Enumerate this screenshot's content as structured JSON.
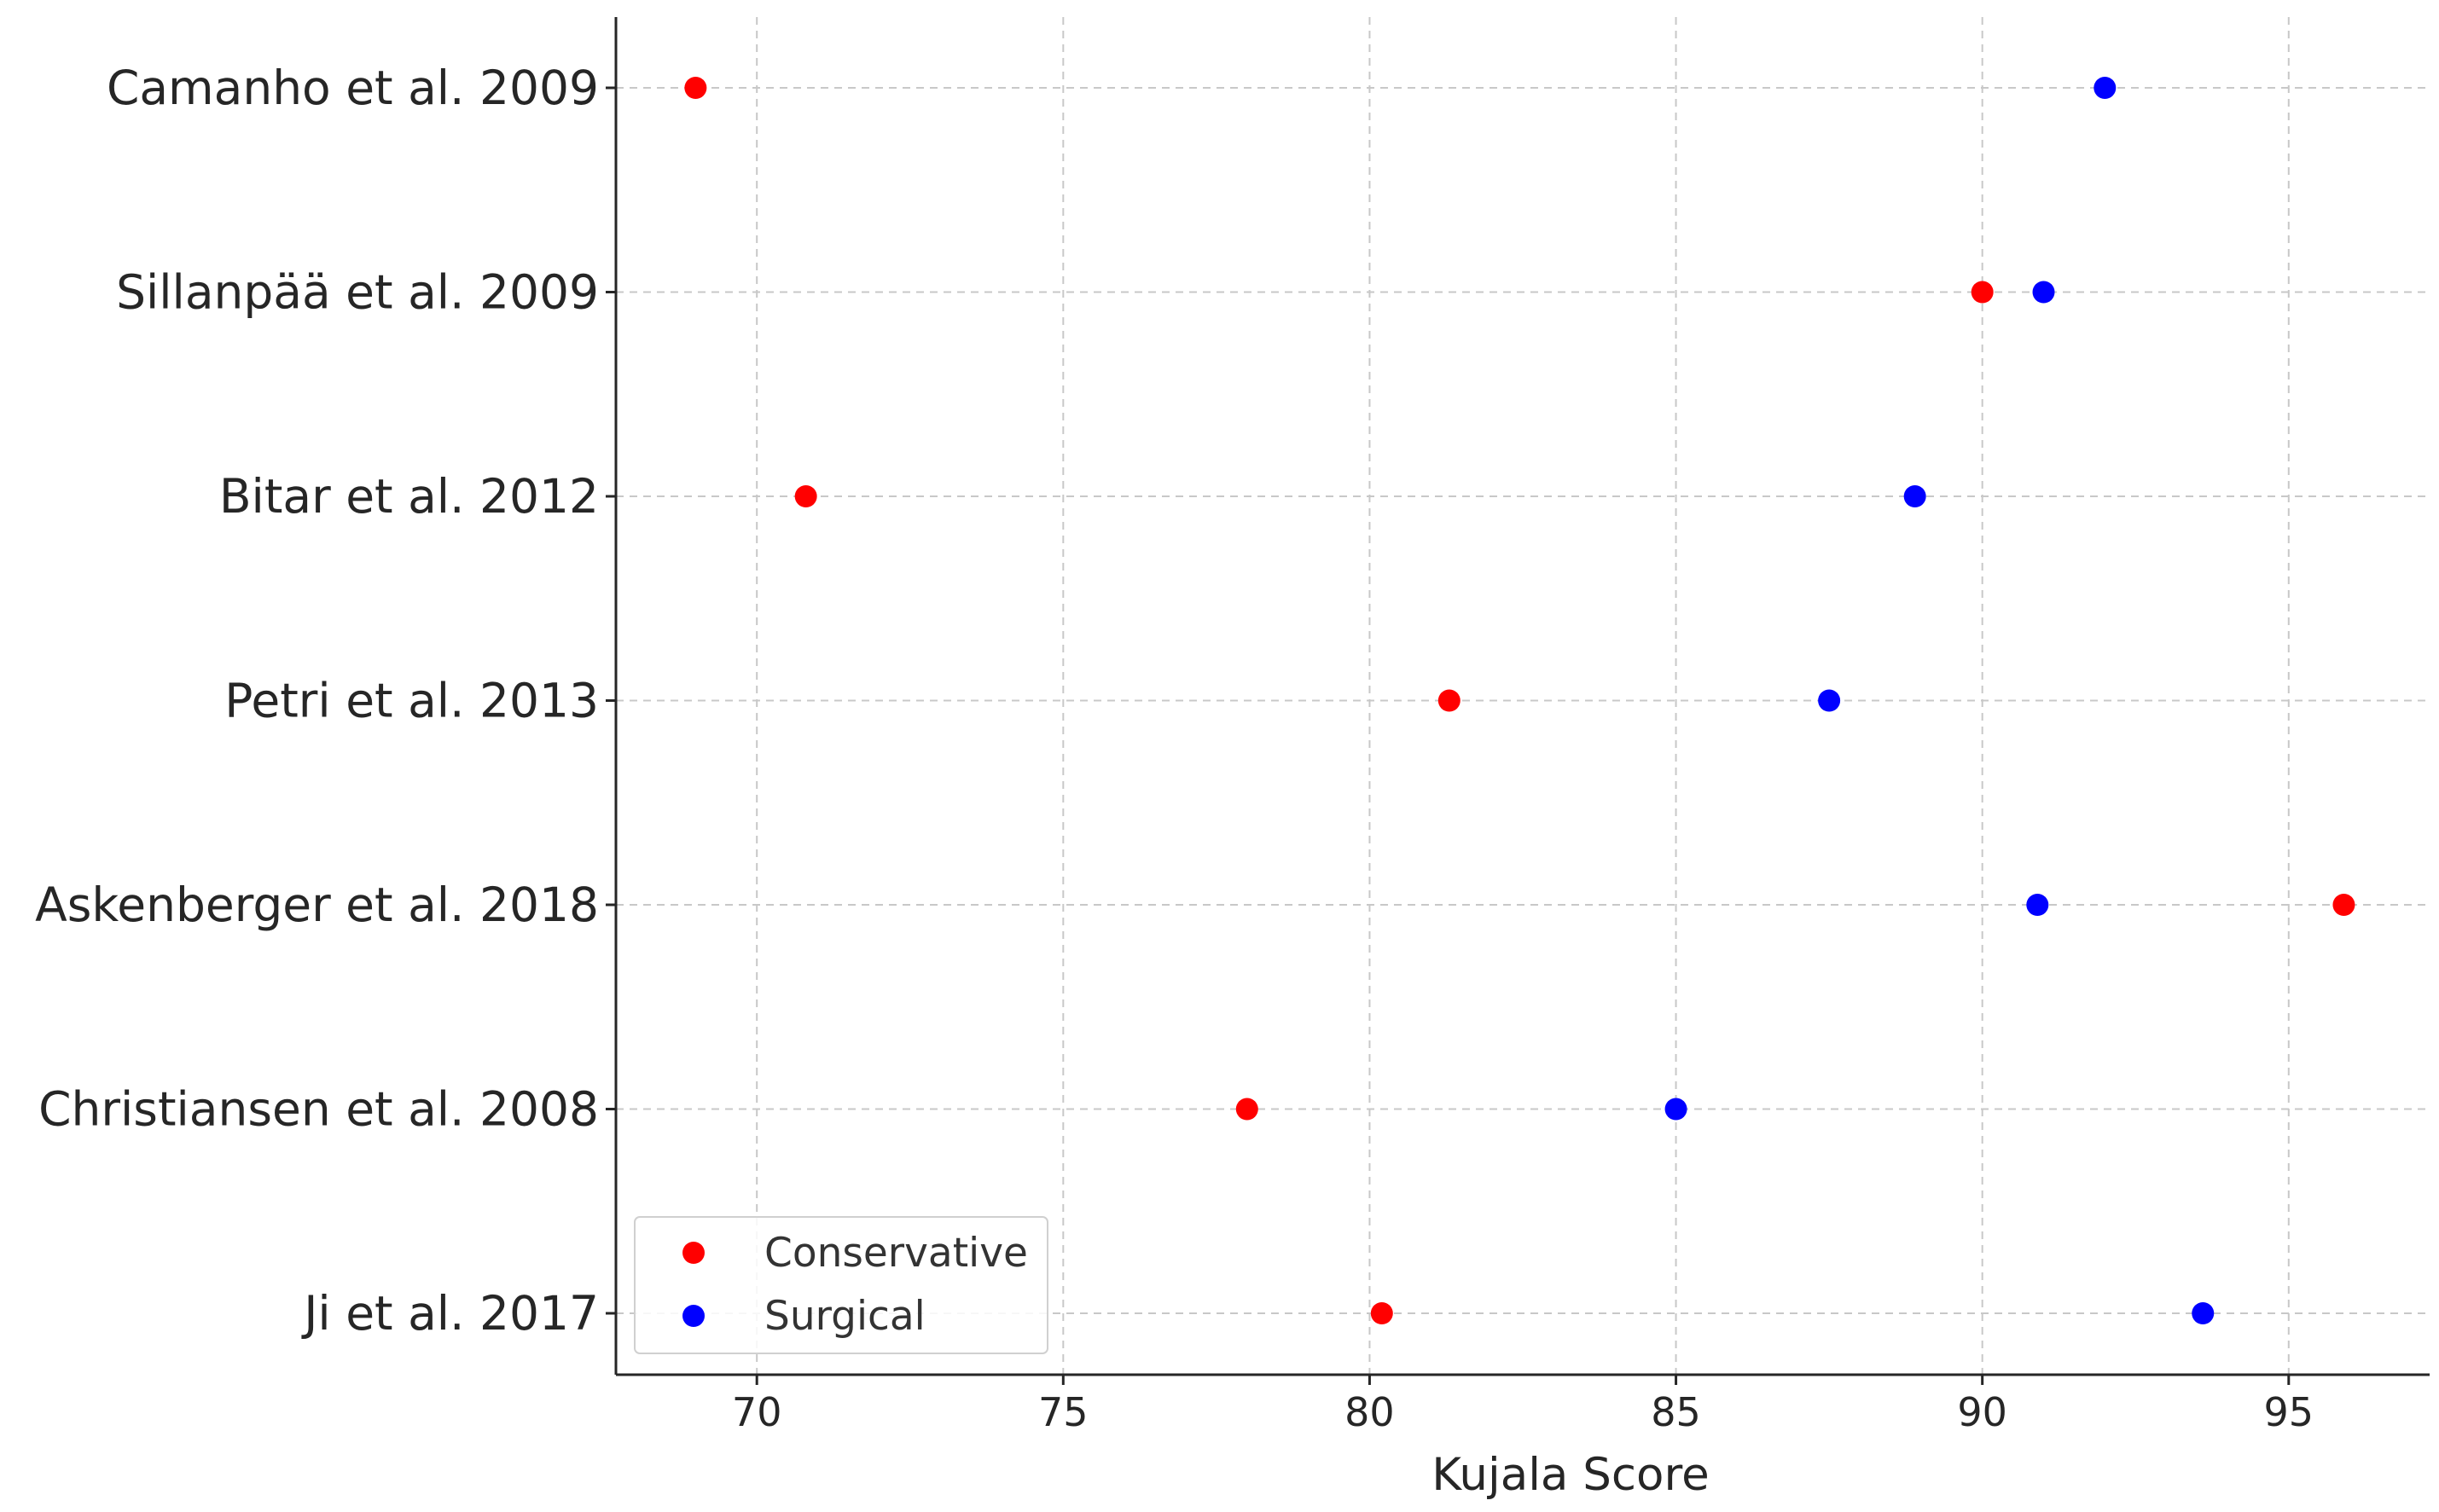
{
  "chart_data": {
    "type": "scatter",
    "orientation": "horizontal-categories",
    "title": "",
    "xlabel": "Kujala Score",
    "ylabel": "",
    "xlim": [
      67.7,
      97.3
    ],
    "xticks": [
      70,
      75,
      80,
      85,
      90,
      95
    ],
    "categories": [
      "Camanho et al. 2009",
      "Sillanpää et al. 2009",
      "Bitar et al. 2012",
      "Petri et al. 2013",
      "Askenberger et al. 2018",
      "Christiansen et al. 2008",
      "Ji et al. 2017"
    ],
    "series": [
      {
        "name": "Conservative",
        "color": "#ff0000",
        "values": [
          69.0,
          90.0,
          70.8,
          81.3,
          95.9,
          78.0,
          80.2
        ]
      },
      {
        "name": "Surgical",
        "color": "#0000ff",
        "values": [
          92.0,
          91.0,
          88.9,
          87.5,
          90.9,
          85.0,
          93.6
        ]
      }
    ],
    "grid": true,
    "legend_position": "lower-left"
  }
}
